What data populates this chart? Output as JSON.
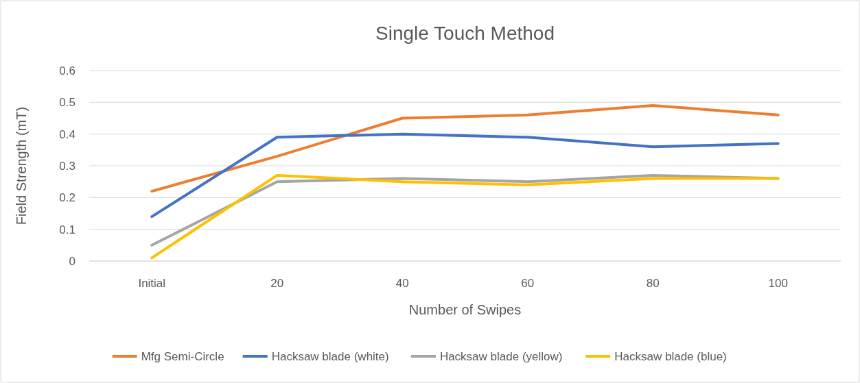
{
  "chart_data": {
    "type": "line",
    "title": "Single Touch Method",
    "xlabel": "Number of Swipes",
    "ylabel": "Field Strength (mT)",
    "categories": [
      "Initial",
      "20",
      "40",
      "60",
      "80",
      "100"
    ],
    "series": [
      {
        "name": "Mfg Semi-Circle",
        "color": "#ed7d31",
        "values": [
          0.22,
          0.33,
          0.45,
          0.46,
          0.49,
          0.46
        ]
      },
      {
        "name": "Hacksaw blade (white)",
        "color": "#4472c4",
        "values": [
          0.14,
          0.39,
          0.4,
          0.39,
          0.36,
          0.37
        ]
      },
      {
        "name": "Hacksaw blade (yellow)",
        "color": "#a5a5a5",
        "values": [
          0.05,
          0.25,
          0.26,
          0.25,
          0.27,
          0.26
        ]
      },
      {
        "name": "Hacksaw blade (blue)",
        "color": "#ffc000",
        "values": [
          0.01,
          0.27,
          0.25,
          0.24,
          0.26,
          0.26
        ]
      }
    ],
    "ylim": [
      0,
      0.6
    ],
    "yticks": [
      0,
      0.1,
      0.2,
      0.3,
      0.4,
      0.5,
      0.6
    ],
    "grid": "y",
    "legend": "bottom",
    "marker": "none",
    "line_style": "solid"
  }
}
